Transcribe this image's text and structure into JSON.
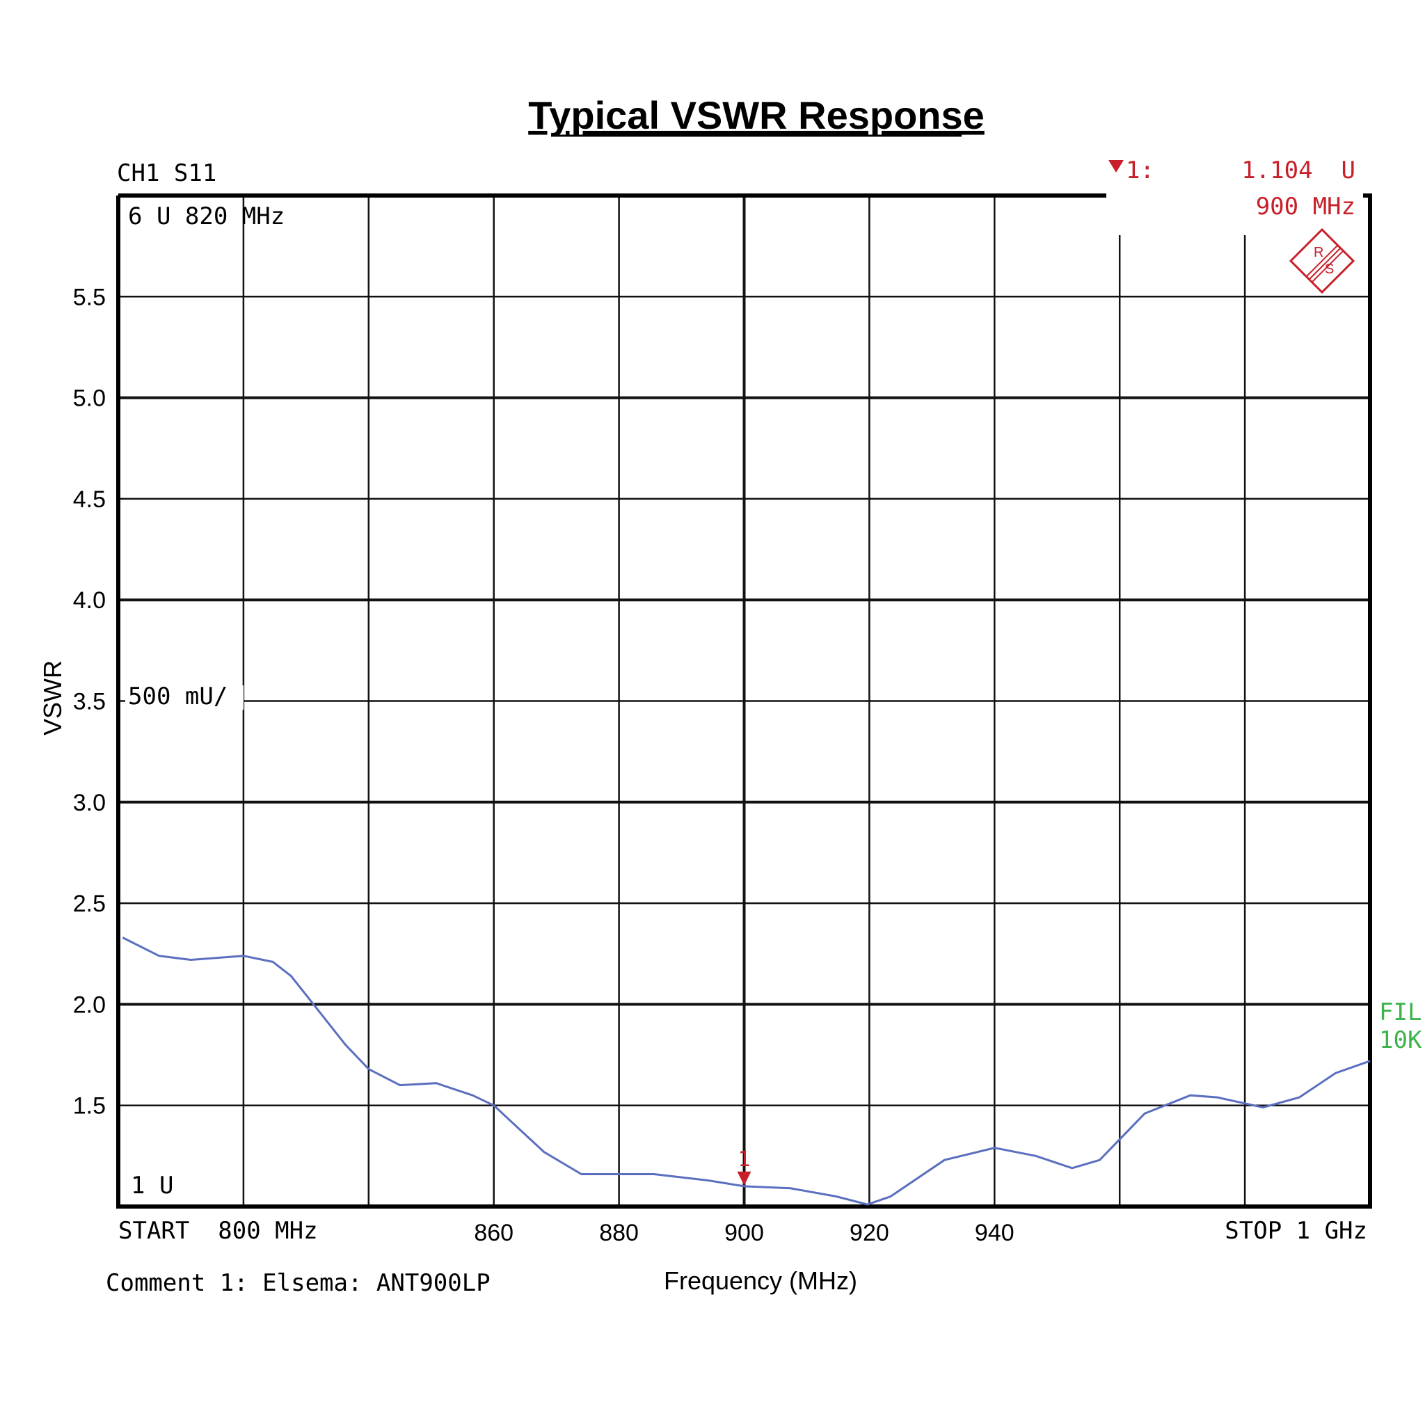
{
  "chart_data": {
    "type": "line",
    "title": "Typical VSWR Response",
    "xlabel": "Frequency (MHz)",
    "ylabel": "VSWR",
    "xlim": [
      800,
      1000
    ],
    "ylim": [
      1,
      6
    ],
    "grid": true,
    "x_tick_labels": [
      {
        "value": 860,
        "label": "860"
      },
      {
        "value": 880,
        "label": "880"
      },
      {
        "value": 900,
        "label": "900"
      },
      {
        "value": 920,
        "label": "920"
      },
      {
        "value": 940,
        "label": "940"
      }
    ],
    "y_tick_labels": [
      {
        "value": 5.5,
        "label": "5.5"
      },
      {
        "value": 5.0,
        "label": "5.0"
      },
      {
        "value": 4.5,
        "label": "4.5"
      },
      {
        "value": 4.0,
        "label": "4.0"
      },
      {
        "value": 3.5,
        "label": "3.5"
      },
      {
        "value": 3.0,
        "label": "3.0"
      },
      {
        "value": 2.5,
        "label": "2.5"
      },
      {
        "value": 2.0,
        "label": "2.0"
      },
      {
        "value": 1.5,
        "label": "1.5"
      }
    ],
    "series": [
      {
        "color": "#5a6fc0",
        "x": [
          800.7,
          806.5,
          811.6,
          820,
          824.7,
          827.6,
          831.2,
          836.3,
          840,
          845,
          850.8,
          856.6,
          860,
          868,
          874,
          880,
          885.6,
          894,
          900,
          907.4,
          914.7,
          919.7,
          923.4,
          932,
          940,
          946.6,
          952.4,
          956.8,
          964,
          971.3,
          975.6,
          982.9,
          988.7,
          994.5,
          1000
        ],
        "y": [
          2.33,
          2.24,
          2.22,
          2.24,
          2.21,
          2.14,
          2.0,
          1.8,
          1.68,
          1.6,
          1.61,
          1.55,
          1.5,
          1.27,
          1.16,
          1.16,
          1.16,
          1.13,
          1.1,
          1.09,
          1.05,
          1.01,
          1.05,
          1.23,
          1.29,
          1.25,
          1.19,
          1.23,
          1.46,
          1.55,
          1.54,
          1.49,
          1.54,
          1.66,
          1.72
        ]
      }
    ],
    "marker": {
      "label": "1",
      "x": 900,
      "y": 1.104,
      "color": "#c8202a"
    }
  },
  "instrument": {
    "channel": "CH1 S11",
    "ref_top": "6 U 820 MHz",
    "scale": "500 mU/",
    "ref_bottom": "1 U",
    "start": "START  800 MHz",
    "stop": "STOP 1 GHz",
    "comment": "Comment 1: Elsema: ANT900LP",
    "marker_readout_label": "1:",
    "marker_readout_value": "1.104  U",
    "marker_readout_freq": "900 MHz",
    "filter_line1": "FIL",
    "filter_line2": "10K",
    "logo": "R&S",
    "readout_color": "#c8202a",
    "filter_color": "#3cb44b"
  }
}
